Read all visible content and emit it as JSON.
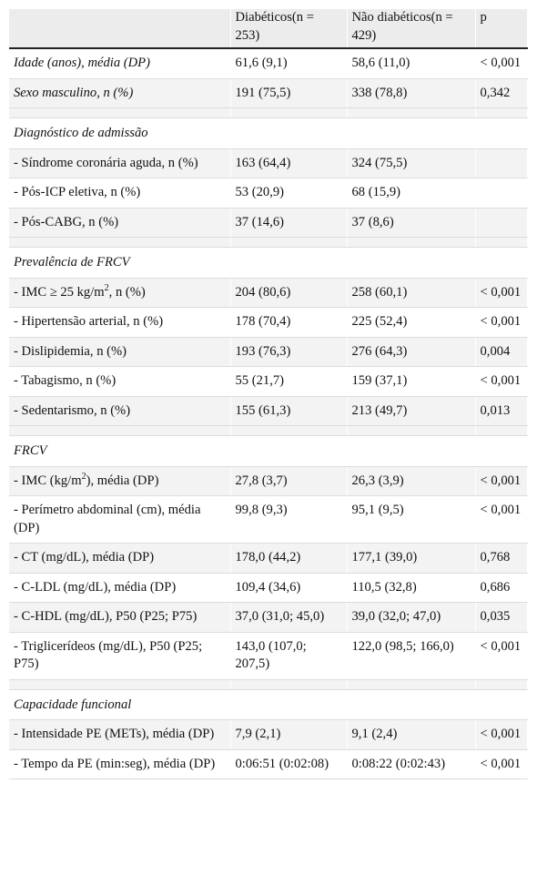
{
  "headers": [
    "",
    "Diabéticos(n = 253)",
    "Não diabéticos(n = 429)",
    "p"
  ],
  "rows": [
    {
      "kind": "data",
      "italic": true,
      "label": "Idade (anos), média (DP)",
      "d": "61,6 (9,1)",
      "nd": "58,6 (11,0)",
      "p": "< 0,001"
    },
    {
      "kind": "data",
      "italic": true,
      "label": "Sexo masculino, n (%)",
      "d": "191 (75,5)",
      "nd": "338 (78,8)",
      "p": "0,342"
    },
    {
      "kind": "spacer"
    },
    {
      "kind": "section",
      "label": "Diagnóstico de admissão"
    },
    {
      "kind": "data",
      "label": " - Síndrome coronária aguda, n (%)",
      "d": "163 (64,4)",
      "nd": "324 (75,5)",
      "p": ""
    },
    {
      "kind": "data",
      "label": " - Pós-ICP eletiva, n (%)",
      "d": "53 (20,9)",
      "nd": "68 (15,9)",
      "p": ""
    },
    {
      "kind": "data",
      "label": " - Pós-CABG, n (%)",
      "d": "37 (14,6)",
      "nd": "37 (8,6)",
      "p": ""
    },
    {
      "kind": "spacer"
    },
    {
      "kind": "section",
      "label": "Prevalência de FRCV"
    },
    {
      "kind": "data",
      "label": " - IMC ≥ 25 kg/m",
      "sup": "2",
      "label_after": ", n (%)",
      "d": "204 (80,6)",
      "nd": "258 (60,1)",
      "p": "< 0,001"
    },
    {
      "kind": "data",
      "label": " - Hipertensão arterial, n (%)",
      "d": "178 (70,4)",
      "nd": "225 (52,4)",
      "p": "< 0,001"
    },
    {
      "kind": "data",
      "label": " - Dislipidemia, n (%)",
      "d": "193 (76,3)",
      "nd": "276 (64,3)",
      "p": "0,004"
    },
    {
      "kind": "data",
      "label": " - Tabagismo, n (%)",
      "d": "55 (21,7)",
      "nd": "159 (37,1)",
      "p": "< 0,001"
    },
    {
      "kind": "data",
      "label": " - Sedentarismo, n (%)",
      "d": "155 (61,3)",
      "nd": "213 (49,7)",
      "p": "0,013"
    },
    {
      "kind": "spacer"
    },
    {
      "kind": "section",
      "label": "FRCV"
    },
    {
      "kind": "data",
      "label": " - IMC (kg/m",
      "sup": "2",
      "label_after": "), média (DP)",
      "d": "27,8 (3,7)",
      "nd": "26,3 (3,9)",
      "p": "< 0,001"
    },
    {
      "kind": "data",
      "label": " - Perímetro abdominal (cm), média (DP)",
      "d": "99,8 (9,3)",
      "nd": "95,1 (9,5)",
      "p": "< 0,001"
    },
    {
      "kind": "data",
      "label": " - CT (mg/dL), média (DP)",
      "d": "178,0 (44,2)",
      "nd": "177,1 (39,0)",
      "p": "0,768"
    },
    {
      "kind": "data",
      "label": " - C-LDL (mg/dL), média (DP)",
      "d": "109,4 (34,6)",
      "nd": "110,5 (32,8)",
      "p": "0,686"
    },
    {
      "kind": "data",
      "label": " - C-HDL (mg/dL), P50 (P25; P75)",
      "d": "37,0 (31,0; 45,0)",
      "nd": "39,0 (32,0; 47,0)",
      "p": "0,035"
    },
    {
      "kind": "data",
      "label": " - Triglicerídeos (mg/dL), P50 (P25; P75)",
      "d": "143,0 (107,0; 207,5)",
      "nd": "122,0 (98,5; 166,0)",
      "p": "< 0,001"
    },
    {
      "kind": "spacer"
    },
    {
      "kind": "section",
      "label": "Capacidade funcional"
    },
    {
      "kind": "data",
      "label": " - Intensidade PE (METs), média (DP)",
      "d": "7,9 (2,1)",
      "nd": "9,1 (2,4)",
      "p": "< 0,001"
    },
    {
      "kind": "data",
      "label": " - Tempo da PE (min:seg), média (DP)",
      "d": "0:06:51 (0:02:08)",
      "nd": "0:08:22 (0:02:43)",
      "p": "< 0,001"
    }
  ]
}
